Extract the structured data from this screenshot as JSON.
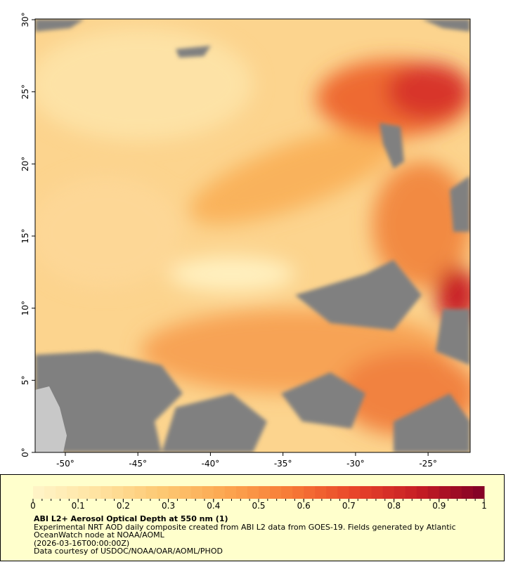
{
  "map": {
    "lon_range": [
      -52.08,
      -22.1
    ],
    "lat_range": [
      0,
      30.05
    ],
    "lat_ticks": [
      {
        "value": 0,
        "label": "0°"
      },
      {
        "value": 5,
        "label": "5°"
      },
      {
        "value": 10,
        "label": "10°"
      },
      {
        "value": 15,
        "label": "15°"
      },
      {
        "value": 20,
        "label": "20°"
      },
      {
        "value": 25,
        "label": "25°"
      },
      {
        "value": 30,
        "label": "30°"
      }
    ],
    "lon_ticks": [
      {
        "value": -50,
        "label": "-50°"
      },
      {
        "value": -45,
        "label": "-45°"
      },
      {
        "value": -40,
        "label": "-40°"
      },
      {
        "value": -35,
        "label": "-35°"
      },
      {
        "value": -30,
        "label": "-30°"
      },
      {
        "value": -25,
        "label": "-25°"
      }
    ]
  },
  "colorbar": {
    "range": [
      0,
      1
    ],
    "ticks": [
      0,
      0.1,
      0.2,
      0.3,
      0.4,
      0.5,
      0.6,
      0.7,
      0.8,
      0.9,
      1
    ],
    "colors": [
      "#fff4c8",
      "#ffe3a0",
      "#fdc872",
      "#fca650",
      "#f77a36",
      "#e8442a",
      "#c51c24",
      "#800026"
    ]
  },
  "caption": {
    "title": "ABI L2+ Aerosol Optical Depth at 550 nm (1)",
    "description": "Experimental NRT AOD daily composite created from ABI L2 data from GOES-19. Fields generated by Atlantic OceanWatch node at NOAA/AOML",
    "timestamp": "(2026-03-16T00:00:00Z)",
    "credit": "Data courtesy of USDOC/NOAA/OAR/AOML/PHOD"
  }
}
